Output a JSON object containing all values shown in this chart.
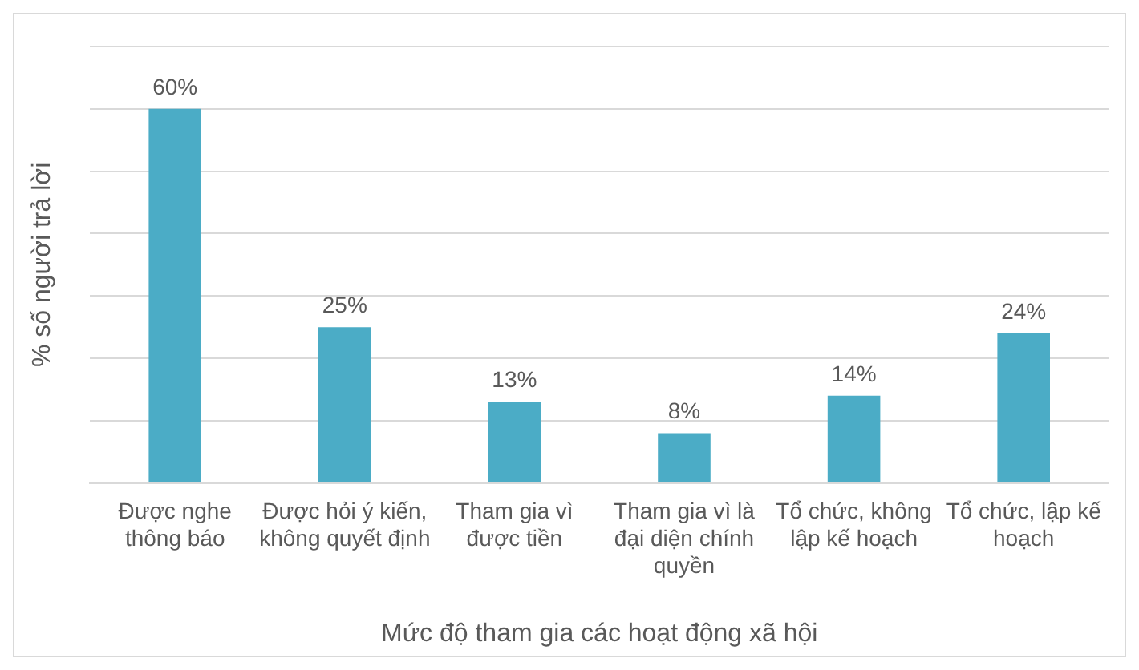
{
  "chart_data": {
    "type": "bar",
    "xlabel": "Mức độ tham gia các hoạt động xã hội",
    "ylabel": "% số người trả lời",
    "categories": [
      "Được nghe thông báo",
      "Được hỏi ý kiến, không quyết định",
      "Tham gia vì được tiền",
      "Tham gia vì là đại diện chính quyền",
      "Tổ chức, không lập kế hoạch",
      "Tổ chức, lập kế hoạch"
    ],
    "values": [
      60,
      25,
      13,
      8,
      14,
      24
    ],
    "value_labels": [
      "60%",
      "25%",
      "13%",
      "8%",
      "14%",
      "24%"
    ],
    "color": "#4bacc6",
    "ylim": [
      0,
      70
    ],
    "yticks": [
      {
        "value": 0,
        "label": null
      },
      {
        "value": 10,
        "label": null
      },
      {
        "value": 20,
        "label": null
      },
      {
        "value": 30,
        "label": null
      },
      {
        "value": 40,
        "label": null
      },
      {
        "value": 50,
        "label": null
      },
      {
        "value": 60,
        "label": null
      },
      {
        "value": 70,
        "label": null
      }
    ],
    "grid": "y",
    "tick_labels": "x",
    "legend": false
  }
}
